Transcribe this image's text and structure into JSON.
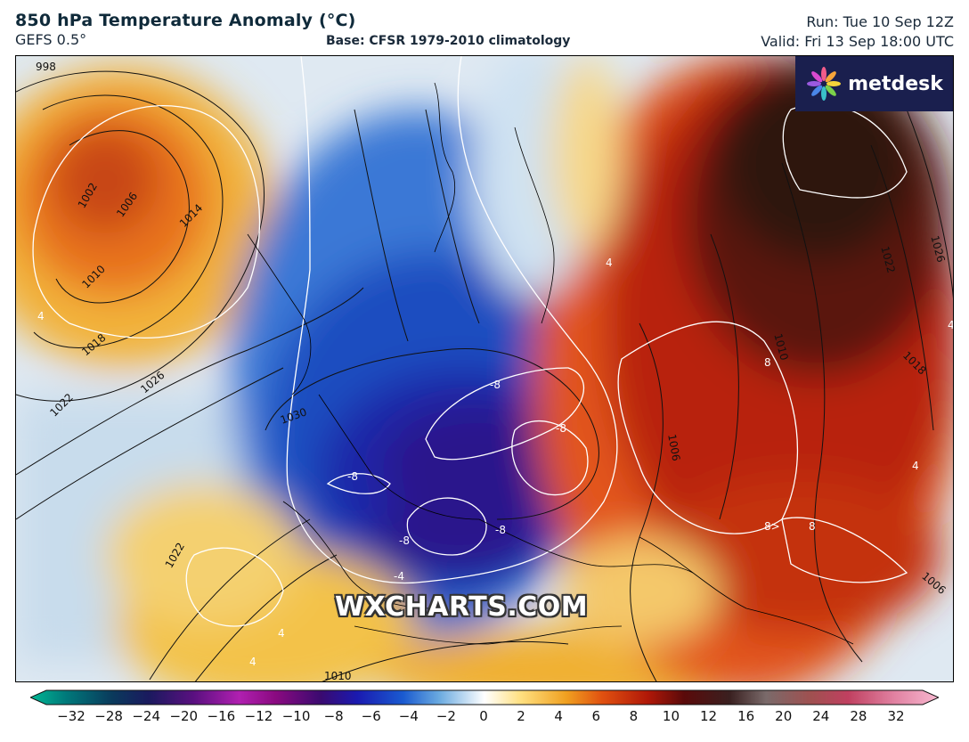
{
  "header": {
    "title": "850 hPa Temperature Anomaly (°C)",
    "model": "GEFS 0.5°",
    "base": "Base: CFSR 1979-2010 climatology",
    "run": "Run: Tue 10 Sep 12Z",
    "valid": "Valid: Fri 13 Sep 18:00 UTC"
  },
  "logo": {
    "text": "metdesk",
    "icon": "metdesk-flower-icon"
  },
  "watermark": "WXCHARTS.COM",
  "isobar_labels": [
    "998",
    "1002",
    "1006",
    "1014",
    "1010",
    "1018",
    "1026",
    "1022",
    "1030",
    "1022",
    "1010",
    "1006",
    "1010",
    "1018",
    "1026",
    "1022",
    "1006"
  ],
  "anomaly_labels": [
    "4",
    "-8",
    "-8",
    "-8",
    "-8",
    "-8",
    "-4",
    "4",
    "4",
    "8",
    "8",
    "8>",
    "4",
    "4",
    "4"
  ],
  "colorbar": {
    "ticks": [
      "−32",
      "−28",
      "−24",
      "−20",
      "−16",
      "−12",
      "−10",
      "−8",
      "−6",
      "−4",
      "−2",
      "0",
      "2",
      "4",
      "6",
      "8",
      "10",
      "12",
      "16",
      "20",
      "24",
      "28",
      "32"
    ],
    "colors": [
      "#00b894",
      "#00787a",
      "#0a3a5c",
      "#1a1a5e",
      "#5a1080",
      "#b020b0",
      "#8a0a80",
      "#3a0a70",
      "#1a1ab0",
      "#1a5ad0",
      "#6aaae0",
      "#ffffff",
      "#ffe080",
      "#f0a020",
      "#e05010",
      "#b01808",
      "#5a0a0a",
      "#3a2020",
      "#7a6a6a",
      "#a05050",
      "#c04060",
      "#e080a0",
      "#f8b8d0"
    ]
  }
}
